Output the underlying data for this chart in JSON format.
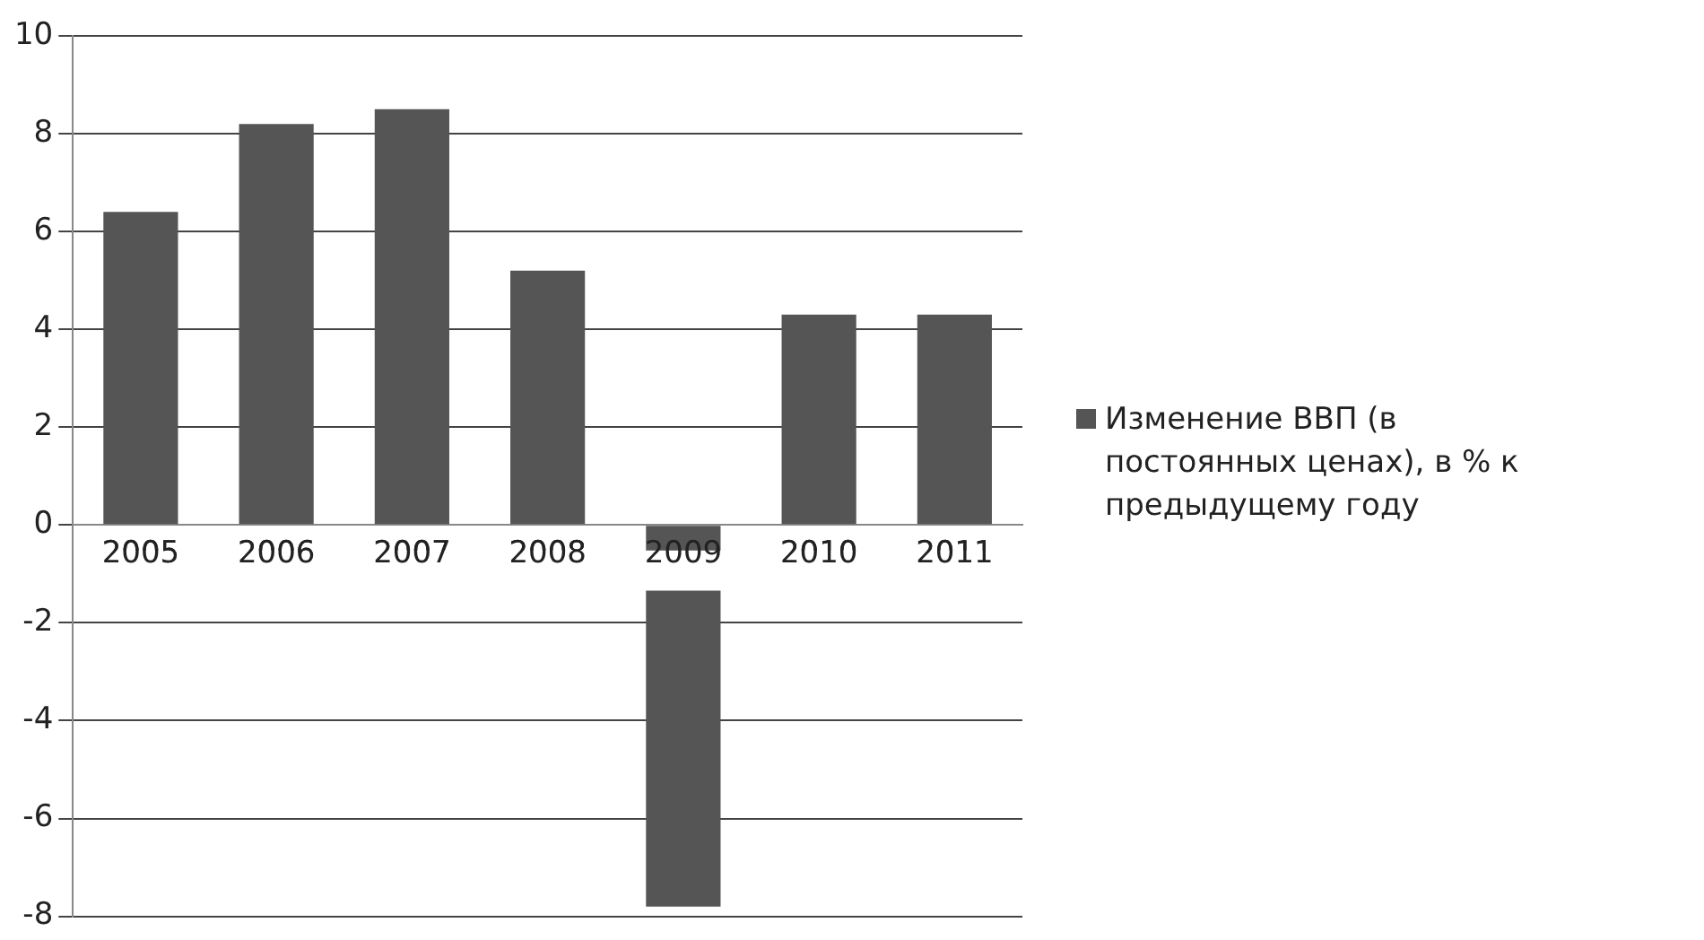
{
  "chart_data": {
    "type": "bar",
    "categories": [
      "2005",
      "2006",
      "2007",
      "2008",
      "2009",
      "2010",
      "2011"
    ],
    "series": [
      {
        "name": "Изменение ВВП (в постоянных ценах), в % к предыдущему году",
        "color": "#555555",
        "values": [
          6.4,
          8.2,
          8.5,
          5.2,
          -7.8,
          4.3,
          4.3
        ]
      }
    ],
    "ylim": [
      -8,
      10
    ],
    "yticks": [
      -8,
      -6,
      -4,
      -2,
      0,
      2,
      4,
      6,
      8,
      10
    ],
    "grid": "y",
    "legend": "right"
  }
}
